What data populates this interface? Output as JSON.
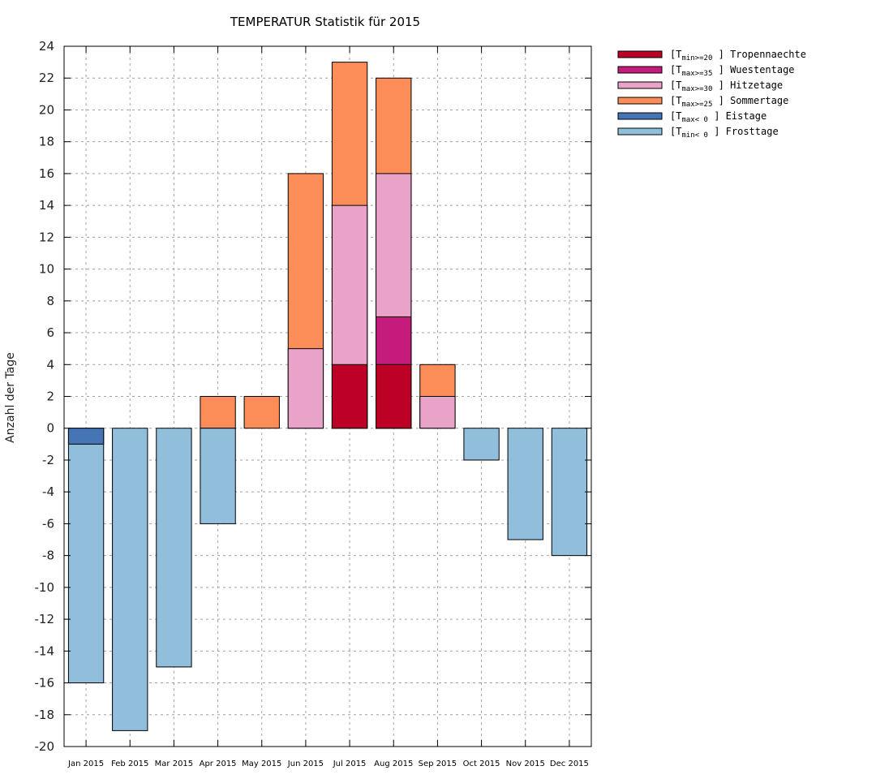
{
  "chart_data": {
    "type": "bar",
    "stacking": "overlay",
    "title": "TEMPERATUR Statistik für 2015",
    "xlabel": "",
    "ylabel": "Anzahl der Tage",
    "ylim": [
      -20,
      24
    ],
    "ytick_step": 2,
    "grid": true,
    "legend_position": "outside-top-right",
    "categories": [
      "Jan 2015",
      "Feb 2015",
      "Mar 2015",
      "Apr 2015",
      "May 2015",
      "Jun 2015",
      "Jul 2015",
      "Aug 2015",
      "Sep 2015",
      "Oct 2015",
      "Nov 2015",
      "Dec 2015"
    ],
    "series": [
      {
        "name": "Sommertage",
        "label_prefix": "T",
        "label_sub": "max>=25",
        "color": "#fc8d59",
        "values": [
          0,
          0,
          0,
          2,
          2,
          16,
          23,
          22,
          4,
          0,
          0,
          0
        ]
      },
      {
        "name": "Hitzetage",
        "label_prefix": "T",
        "label_sub": "max>=30",
        "color": "#e9a3c9",
        "values": [
          0,
          0,
          0,
          0,
          0,
          5,
          14,
          16,
          2,
          0,
          0,
          0
        ]
      },
      {
        "name": "Wuestentage",
        "label_prefix": "T",
        "label_sub": "max>=35",
        "color": "#c51b7d",
        "values": [
          0,
          0,
          0,
          0,
          0,
          0,
          0,
          7,
          0,
          0,
          0,
          0
        ]
      },
      {
        "name": "Tropennaechte",
        "label_prefix": "T",
        "label_sub": "min>=20",
        "color": "#bd0026",
        "values": [
          0,
          0,
          0,
          0,
          0,
          0,
          4,
          4,
          0,
          0,
          0,
          0
        ]
      },
      {
        "name": "Frosttage",
        "label_prefix": "T",
        "label_sub": "min< 0",
        "color": "#91bfdb",
        "values": [
          -16,
          -19,
          -15,
          -6,
          0,
          0,
          0,
          0,
          0,
          -2,
          -7,
          -8
        ]
      },
      {
        "name": "Eistage",
        "label_prefix": "T",
        "label_sub": "max< 0",
        "color": "#4575b4",
        "values": [
          -1,
          0,
          0,
          0,
          0,
          0,
          0,
          0,
          0,
          0,
          0,
          0
        ]
      }
    ],
    "legend_order": [
      "Tropennaechte",
      "Wuestentage",
      "Hitzetage",
      "Sommertage",
      "Eistage",
      "Frosttage"
    ]
  }
}
